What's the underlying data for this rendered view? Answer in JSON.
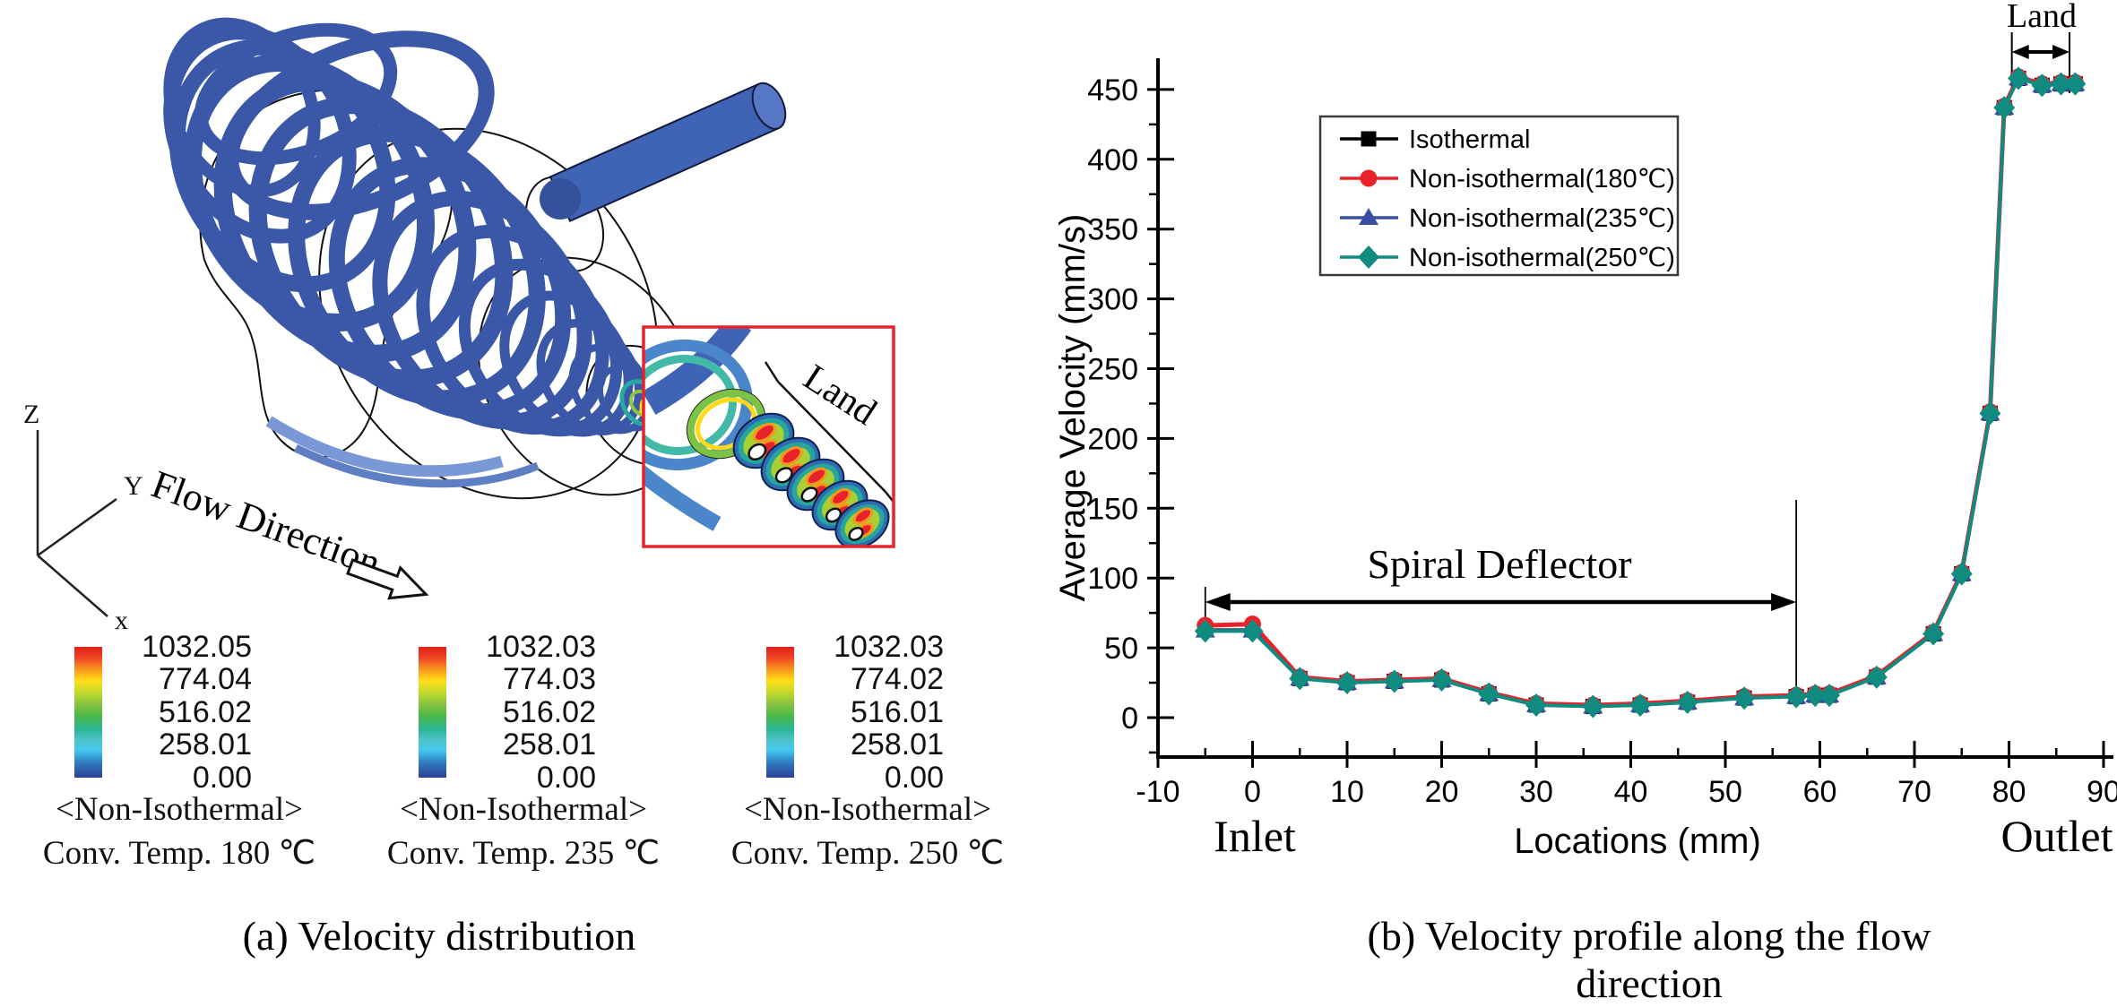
{
  "figure": {
    "caption_a": "(a) Velocity distribution",
    "caption_b": "(b) Velocity profile along the flow direction"
  },
  "panel_a": {
    "triad": {
      "z": "Z",
      "y": "Y",
      "x": "x"
    },
    "flow_direction_label": "Flow Direction",
    "inset_label": "Land",
    "colorbars": [
      {
        "values": [
          "1032.05",
          "774.04",
          "516.02",
          "258.01",
          "0.00"
        ],
        "title": "<Non-Isothermal>",
        "subtitle": "Conv. Temp. 180 ℃"
      },
      {
        "values": [
          "1032.03",
          "774.03",
          "516.02",
          "258.01",
          "0.00"
        ],
        "title": "<Non-Isothermal>",
        "subtitle": "Conv. Temp. 235 ℃"
      },
      {
        "values": [
          "1032.03",
          "774.02",
          "516.01",
          "258.01",
          "0.00"
        ],
        "title": "<Non-Isothermal>",
        "subtitle": "Conv. Temp. 250 ℃"
      }
    ]
  },
  "panel_b": {
    "ylabel": "Average Velocity (mm/s)",
    "xlabel": "Locations (mm)",
    "inlet_label": "Inlet",
    "outlet_label": "Outlet",
    "chart_data": {
      "type": "line",
      "title": "",
      "x": [
        -5,
        0,
        5,
        10,
        15,
        20,
        25,
        30,
        36,
        41,
        46,
        52,
        57.5,
        59.5,
        61,
        66,
        72,
        75,
        78,
        79.5,
        81,
        83.5,
        85.5,
        87
      ],
      "series": [
        {
          "name": "Isothermal",
          "color": "#000000",
          "marker": "square",
          "values": [
            63,
            63,
            28,
            25,
            26,
            27,
            17,
            9,
            8,
            9,
            11,
            14,
            15,
            16,
            16,
            29,
            60,
            103,
            218,
            437,
            458,
            453,
            454,
            454
          ]
        },
        {
          "name": "Non-isothermal(180℃)",
          "color": "#e8212a",
          "marker": "circle",
          "values": [
            66,
            67,
            29,
            26,
            27,
            28,
            18,
            10,
            9,
            10,
            12,
            15,
            16,
            17,
            17,
            30,
            61,
            104,
            219,
            438,
            459,
            454,
            455,
            455
          ]
        },
        {
          "name": "Non-isothermal(235℃)",
          "color": "#3a4fa0",
          "marker": "triangle",
          "values": [
            62.5,
            62.5,
            28,
            25,
            26,
            27,
            17,
            9,
            8,
            9,
            11,
            14,
            15,
            16,
            16,
            29,
            60,
            103,
            218,
            437,
            458,
            453,
            454,
            454
          ]
        },
        {
          "name": "Non-isothermal(250℃)",
          "color": "#0f8c7f",
          "marker": "diamond",
          "values": [
            62,
            62,
            28,
            25,
            26,
            27,
            17,
            9,
            8,
            9,
            11,
            14,
            15,
            16,
            16,
            29,
            60,
            103,
            218,
            437,
            458,
            453,
            454,
            454
          ]
        }
      ],
      "x_ticks": [
        -10,
        0,
        10,
        20,
        30,
        40,
        50,
        60,
        70,
        80,
        90
      ],
      "y_ticks": [
        0,
        50,
        100,
        150,
        200,
        250,
        300,
        350,
        400,
        450
      ],
      "xlim": [
        -10,
        91
      ],
      "ylim": [
        -28,
        474
      ],
      "grid": false,
      "legend_position": "upper-left-inside",
      "annotations": {
        "spiral_deflector": {
          "label": "Spiral Deflector",
          "x_from": -5,
          "x_to": 57.5
        },
        "land": {
          "label": "Land",
          "x_from": 80.3,
          "x_to": 86.4
        }
      }
    }
  }
}
